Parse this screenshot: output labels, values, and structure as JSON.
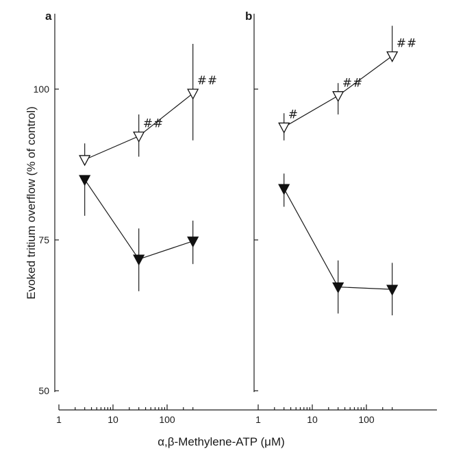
{
  "chart_data": {
    "type": "line",
    "ylabel": "Evoked tritium overflow (% of control)",
    "xlabel": "α,β-Methylene-ATP (μM)",
    "xscale": "log",
    "xlim": [
      1,
      300
    ],
    "ylim": [
      50,
      111
    ],
    "y_ticks": [
      50,
      75,
      100
    ],
    "x_ticks": [
      1,
      10,
      100
    ],
    "x_tick_labels": [
      "1",
      "10",
      "100"
    ],
    "y_tick_labels": [
      "50",
      "75",
      "100"
    ],
    "panels": [
      {
        "label": "a",
        "series": [
          {
            "marker": "open-triangle-down",
            "x": [
              3,
              30,
              300
            ],
            "y": [
              88.3,
              92.2,
              99.3
            ],
            "err_low": [
              88.3,
              88.8,
              91.5
            ],
            "err_high": [
              91.0,
              95.8,
              107.5
            ],
            "annotations": [
              "",
              "##",
              "##"
            ]
          },
          {
            "marker": "filled-triangle-down",
            "x": [
              3,
              30,
              300
            ],
            "y": [
              85.0,
              71.8,
              74.8
            ],
            "err_low": [
              79.0,
              66.5,
              71.0
            ],
            "err_high": [
              85.0,
              76.9,
              78.2
            ],
            "annotations": [
              "",
              "",
              ""
            ]
          }
        ]
      },
      {
        "label": "b",
        "series": [
          {
            "marker": "open-triangle-down",
            "x": [
              3,
              30,
              300
            ],
            "y": [
              93.7,
              98.9,
              105.5
            ],
            "err_low": [
              91.5,
              95.8,
              105.5
            ],
            "err_high": [
              96.0,
              101.0,
              110.5
            ],
            "annotations": [
              "#",
              "##",
              "##"
            ]
          },
          {
            "marker": "filled-triangle-down",
            "x": [
              3,
              30,
              300
            ],
            "y": [
              83.5,
              67.2,
              66.8
            ],
            "err_low": [
              80.5,
              62.8,
              62.5
            ],
            "err_high": [
              86.0,
              71.6,
              71.2
            ],
            "annotations": [
              "",
              "",
              ""
            ]
          }
        ]
      }
    ]
  }
}
